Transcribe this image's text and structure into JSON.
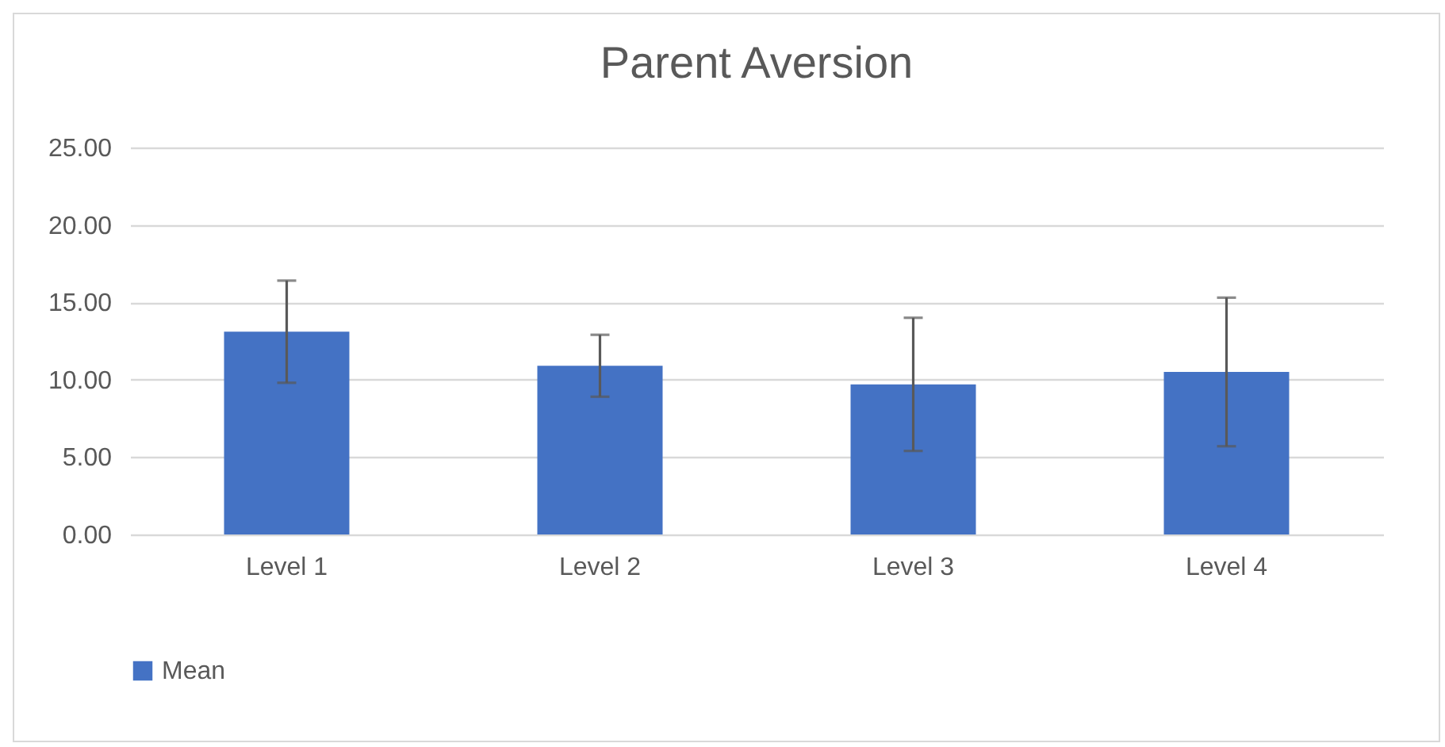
{
  "chart_data": {
    "type": "bar",
    "title": "Parent Aversion",
    "categories": [
      "Level 1",
      "Level 2",
      "Level 3",
      "Level 4"
    ],
    "series": [
      {
        "name": "Mean",
        "color": "#4472c4",
        "values": [
          13.1,
          10.9,
          9.7,
          10.5
        ],
        "errors": [
          3.3,
          2.0,
          4.3,
          4.8
        ]
      }
    ],
    "ylim": [
      0,
      25
    ],
    "yticks": [
      {
        "value": 0,
        "label": "0.00"
      },
      {
        "value": 5,
        "label": "5.00"
      },
      {
        "value": 10,
        "label": "10.00"
      },
      {
        "value": 15,
        "label": "15.00"
      },
      {
        "value": 20,
        "label": "20.00"
      },
      {
        "value": 25,
        "label": "25.00"
      }
    ],
    "grid": "y",
    "legend": "bottom"
  }
}
